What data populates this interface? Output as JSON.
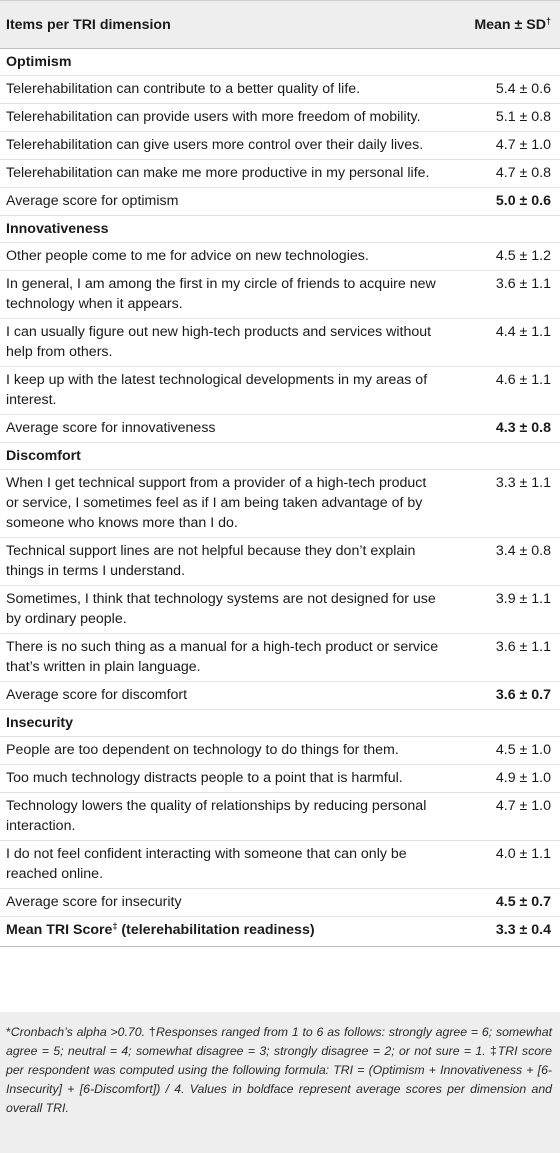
{
  "header": {
    "col1": "Items per TRI dimension",
    "col2": "Mean ± SD",
    "col2_mark": "†"
  },
  "sections": [
    {
      "title": "Optimism",
      "items": [
        {
          "text": "Telerehabilitation can contribute to a better quality of life.",
          "value": "5.4 ± 0.6"
        },
        {
          "text": "Telerehabilitation can provide users with more freedom of mobility.",
          "value": "5.1 ± 0.8"
        },
        {
          "text": "Telerehabilitation can give users more control over their daily lives.",
          "value": "4.7 ± 1.0"
        },
        {
          "text": "Telerehabilitation can make me more productive in my personal life.",
          "value": "4.7 ± 0.8"
        }
      ],
      "average": {
        "text": "Average score for optimism",
        "value": "5.0 ± 0.6"
      }
    },
    {
      "title": "Innovativeness",
      "items": [
        {
          "text": "Other people come to me for advice on new technologies.",
          "value": "4.5 ± 1.2"
        },
        {
          "text": "In general, I am among the first in my circle of friends to acquire new technology when it appears.",
          "value": "3.6 ± 1.1"
        },
        {
          "text": "I can usually figure out new high-tech products and services without help from others.",
          "value": "4.4 ± 1.1"
        },
        {
          "text": "I keep up with the latest technological developments in my areas of interest.",
          "value": "4.6 ± 1.1"
        }
      ],
      "average": {
        "text": "Average score for innovativeness",
        "value": "4.3 ± 0.8"
      }
    },
    {
      "title": "Discomfort",
      "items": [
        {
          "text": "When I get technical support from a provider of a high-tech product or service, I sometimes feel as if I am being taken advantage of by someone who knows more than I do.",
          "value": "3.3 ± 1.1"
        },
        {
          "text": "Technical support lines are not helpful because they don’t explain things in terms I understand.",
          "value": "3.4 ± 0.8"
        },
        {
          "text": "Sometimes, I think that technology systems are not designed for use by ordinary people.",
          "value": "3.9 ± 1.1"
        },
        {
          "text": "There is no such thing as a manual for a high-tech product or service that’s written in plain language.",
          "value": "3.6 ± 1.1"
        }
      ],
      "average": {
        "text": "Average score for discomfort",
        "value": "3.6 ± 0.7"
      }
    },
    {
      "title": "Insecurity",
      "items": [
        {
          "text": "People are too dependent on technology to do things for them.",
          "value": "4.5 ± 1.0"
        },
        {
          "text": "Too much technology distracts people to a point that is harmful.",
          "value": "4.9 ± 1.0"
        },
        {
          "text": "Technology lowers the quality of relationships by reducing personal interaction.",
          "value": "4.7 ± 1.0"
        },
        {
          "text": "I do not feel confident interacting with someone that can only be reached online.",
          "value": "4.0 ± 1.1"
        }
      ],
      "average": {
        "text": "Average score for insecurity",
        "value": "4.5 ± 0.7"
      }
    }
  ],
  "total": {
    "label": "Mean TRI Score",
    "mark": "‡",
    "suffix": " (telerehabilitation readiness)",
    "value": "3.3 ± 0.4"
  },
  "footnote": {
    "star": "*",
    "star_text": "Cronbach’s alpha >0.70. ",
    "dagger": "†",
    "dagger_text": "Responses ranged from 1 to 6 as follows: strongly agree = 6; somewhat agree = 5; neutral = 4; somewhat disagree = 3; strongly disagree = 2; or not sure = 1. ",
    "ddagger": "‡",
    "ddagger_text": "TRI score per respondent was computed using the following formula: TRI = (Optimism + Innovativeness + [6-Insecurity] + [6-Discomfort]) / 4. Values in boldface represent average scores per dimension and overall TRI."
  }
}
